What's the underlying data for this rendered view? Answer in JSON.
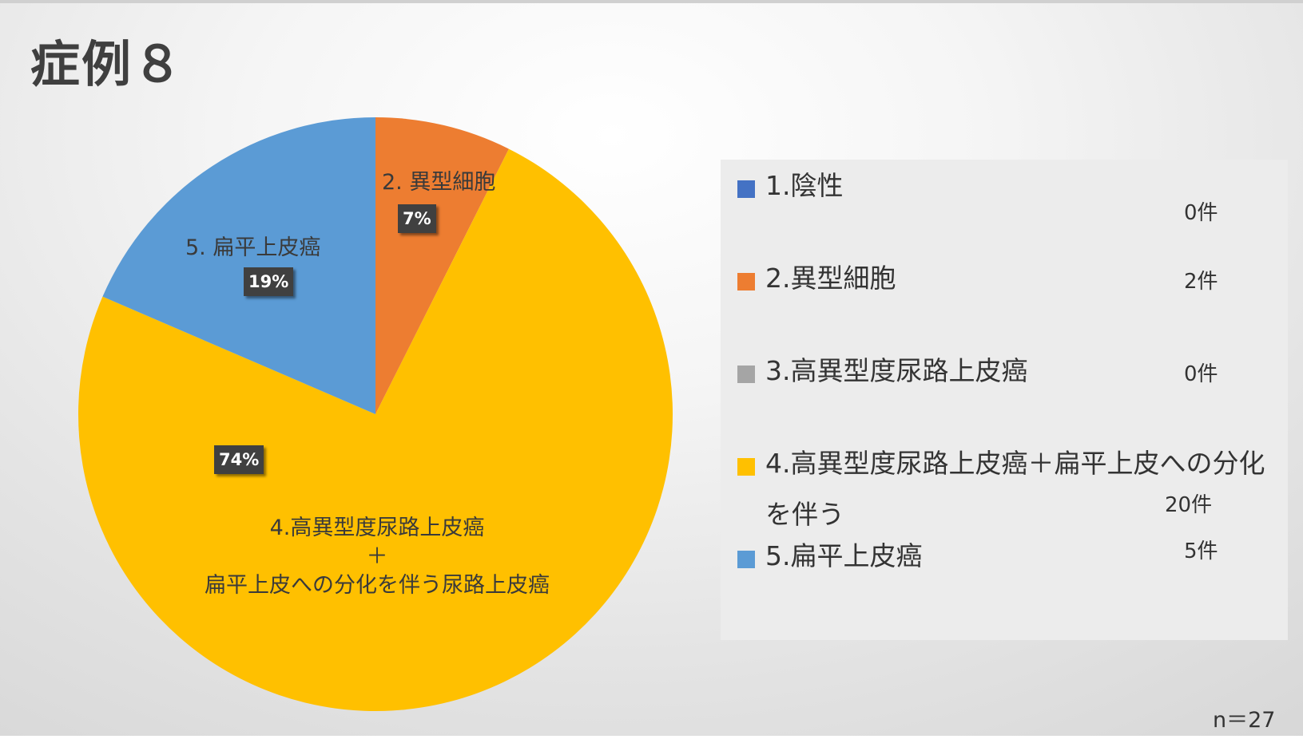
{
  "title": "症例８",
  "n_label": "n＝27",
  "chart_data": {
    "type": "pie",
    "start_angle_deg": 0,
    "direction": "clockwise",
    "slices": [
      {
        "legend": "1.陰性",
        "count_label": "0件",
        "value": 0,
        "percent_label": "",
        "label": "",
        "color": "#4472c4"
      },
      {
        "legend": "2.異型細胞",
        "count_label": "2件",
        "value": 2,
        "percent_label": "7%",
        "label": "2. 異型細胞",
        "color": "#ed7d31"
      },
      {
        "legend": "3.高異型度尿路上皮癌",
        "count_label": "0件",
        "value": 0,
        "percent_label": "",
        "label": "",
        "color": "#a5a5a5"
      },
      {
        "legend": "4.高異型度尿路上皮癌＋扁平上皮への分化を伴う",
        "count_label": "20件",
        "value": 20,
        "percent_label": "74%",
        "label_lines": [
          "4.高異型度尿路上皮癌",
          "＋",
          "扁平上皮への分化を伴う尿路上皮癌"
        ],
        "color": "#ffc000"
      },
      {
        "legend": "5.扁平上皮癌",
        "count_label": "5件",
        "value": 5,
        "percent_label": "19%",
        "label": "5. 扁平上皮癌",
        "color": "#5b9bd5"
      }
    ]
  }
}
